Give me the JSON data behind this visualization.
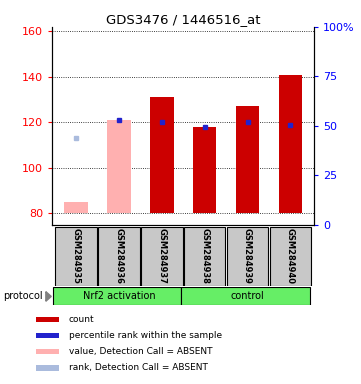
{
  "title": "GDS3476 / 1446516_at",
  "samples": [
    "GSM284935",
    "GSM284936",
    "GSM284937",
    "GSM284938",
    "GSM284939",
    "GSM284940"
  ],
  "ylim_left": [
    75,
    162
  ],
  "left_ticks": [
    80,
    100,
    120,
    140,
    160
  ],
  "right_ticks": [
    0,
    25,
    50,
    75,
    100
  ],
  "right_tick_labels": [
    "0",
    "25",
    "50",
    "75",
    "100%"
  ],
  "red_bars": [
    null,
    null,
    131,
    118,
    127,
    141
  ],
  "pink_bars": [
    85,
    121,
    null,
    null,
    null,
    null
  ],
  "blue_squares": [
    null,
    121,
    120,
    118,
    120,
    119
  ],
  "light_blue_squares": [
    113,
    null,
    null,
    null,
    null,
    null
  ],
  "bar_bottom": 80,
  "red_color": "#CC0000",
  "pink_color": "#FFB0B0",
  "blue_color": "#2222CC",
  "light_blue_color": "#AABBDD",
  "legend_items": [
    {
      "color": "#CC0000",
      "label": "count"
    },
    {
      "color": "#2222CC",
      "label": "percentile rank within the sample"
    },
    {
      "color": "#FFB0B0",
      "label": "value, Detection Call = ABSENT"
    },
    {
      "color": "#AABBDD",
      "label": "rank, Detection Call = ABSENT"
    }
  ]
}
